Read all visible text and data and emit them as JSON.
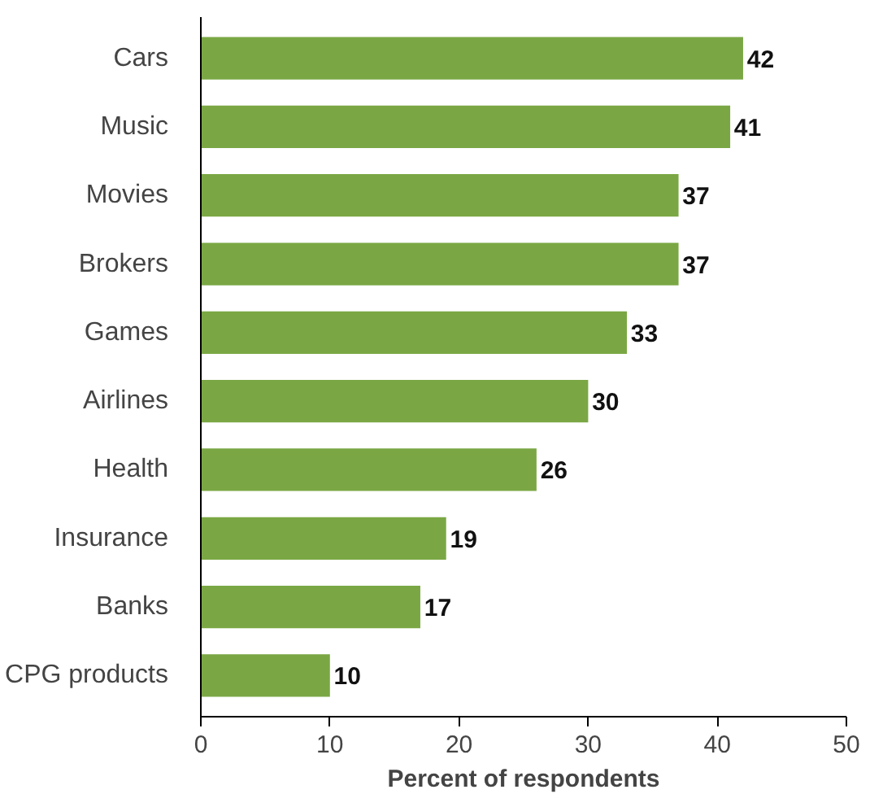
{
  "chart_data": {
    "type": "bar",
    "orientation": "horizontal",
    "xlabel": "Percent of respondents",
    "categories": [
      "Cars",
      "Music",
      "Movies",
      "Brokers",
      "Games",
      "Airlines",
      "Health",
      "Insurance",
      "Banks",
      "CPG products"
    ],
    "values": [
      42,
      41,
      37,
      37,
      33,
      30,
      26,
      19,
      17,
      10
    ],
    "color": "#7aa744",
    "xlim": [
      0,
      50
    ],
    "xticks": [
      0,
      10,
      20,
      30,
      40,
      50
    ],
    "grid": false,
    "data_labels": true
  }
}
